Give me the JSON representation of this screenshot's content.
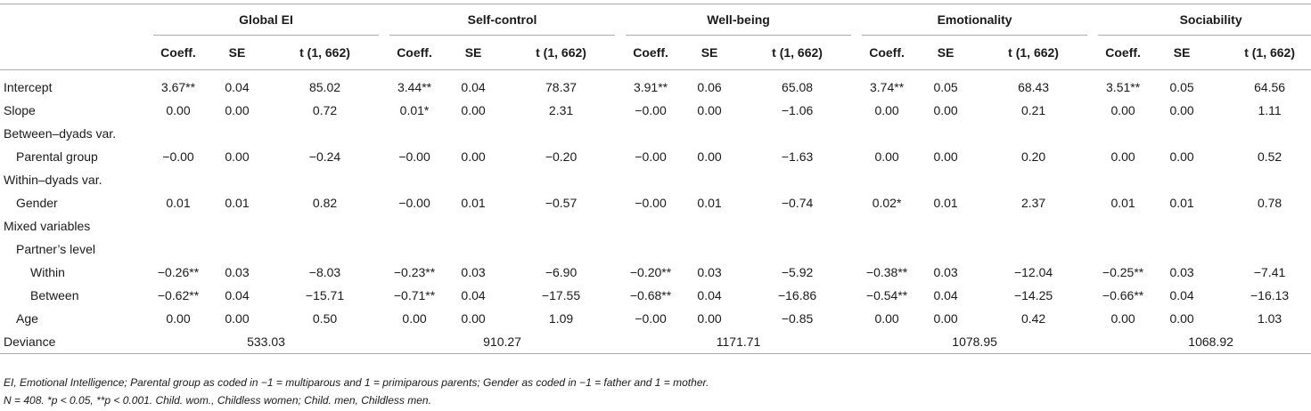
{
  "headers": {
    "groups": [
      "Global EI",
      "Self-control",
      "Well-being",
      "Emotionality",
      "Sociability"
    ],
    "sub": [
      "Coeff.",
      "SE",
      "t (1, 662)"
    ]
  },
  "rows": [
    {
      "label": "Intercept",
      "values": [
        "3.67**",
        "0.04",
        "85.02",
        "3.44**",
        "0.04",
        "78.37",
        "3.91**",
        "0.06",
        "65.08",
        "3.74**",
        "0.05",
        "68.43",
        "3.51**",
        "0.05",
        "64.56"
      ]
    },
    {
      "label": "Slope",
      "values": [
        "0.00",
        "0.00",
        "0.72",
        "0.01*",
        "0.00",
        "2.31",
        "−0.00",
        "0.00",
        "−1.06",
        "0.00",
        "0.00",
        "0.21",
        "0.00",
        "0.00",
        "1.11"
      ]
    },
    {
      "label": "Between–dyads var.",
      "values": [
        "",
        "",
        "",
        "",
        "",
        "",
        "",
        "",
        "",
        "",
        "",
        "",
        "",
        "",
        ""
      ]
    },
    {
      "label": "Parental group",
      "values": [
        "−0.00",
        "0.00",
        "−0.24",
        "−0.00",
        "0.00",
        "−0.20",
        "−0.00",
        "0.00",
        "−1.63",
        "0.00",
        "0.00",
        "0.20",
        "0.00",
        "0.00",
        "0.52"
      ]
    },
    {
      "label": "Within–dyads var.",
      "values": [
        "",
        "",
        "",
        "",
        "",
        "",
        "",
        "",
        "",
        "",
        "",
        "",
        "",
        "",
        ""
      ]
    },
    {
      "label": "Gender",
      "values": [
        "0.01",
        "0.01",
        "0.82",
        "−0.00",
        "0.01",
        "−0.57",
        "−0.00",
        "0.01",
        "−0.74",
        "0.02*",
        "0.01",
        "2.37",
        "0.01",
        "0.01",
        "0.78"
      ]
    },
    {
      "label": "Mixed variables",
      "values": [
        "",
        "",
        "",
        "",
        "",
        "",
        "",
        "",
        "",
        "",
        "",
        "",
        "",
        "",
        ""
      ]
    },
    {
      "label": "Partner’s level",
      "values": [
        "",
        "",
        "",
        "",
        "",
        "",
        "",
        "",
        "",
        "",
        "",
        "",
        "",
        "",
        ""
      ]
    },
    {
      "label": "Within",
      "values": [
        "−0.26**",
        "0.03",
        "−8.03",
        "−0.23**",
        "0.03",
        "−6.90",
        "−0.20**",
        "0.03",
        "−5.92",
        "−0.38**",
        "0.03",
        "−12.04",
        "−0.25**",
        "0.03",
        "−7.41"
      ]
    },
    {
      "label": "Between",
      "values": [
        "−0.62**",
        "0.04",
        "−15.71",
        "−0.71**",
        "0.04",
        "−17.55",
        "−0.68**",
        "0.04",
        "−16.86",
        "−0.54**",
        "0.04",
        "−14.25",
        "−0.66**",
        "0.04",
        "−16.13"
      ]
    },
    {
      "label": "Age",
      "values": [
        "0.00",
        "0.00",
        "0.50",
        "0.00",
        "0.00",
        "1.09",
        "−0.00",
        "0.00",
        "−0.85",
        "0.00",
        "0.00",
        "0.42",
        "0.00",
        "0.00",
        "1.03"
      ]
    }
  ],
  "deviance": {
    "label": "Deviance",
    "values": [
      "533.03",
      "910.27",
      "1171.71",
      "1078.95",
      "1068.92"
    ]
  },
  "footnotes": [
    "EI, Emotional Intelligence; Parental group as coded in −1 = multiparous and 1 = primiparous parents; Gender as coded in −1 = father and 1 = mother.",
    "N = 408. *p < 0.05, **p < 0.001. Child. wom., Childless women; Child. men, Childless men."
  ]
}
